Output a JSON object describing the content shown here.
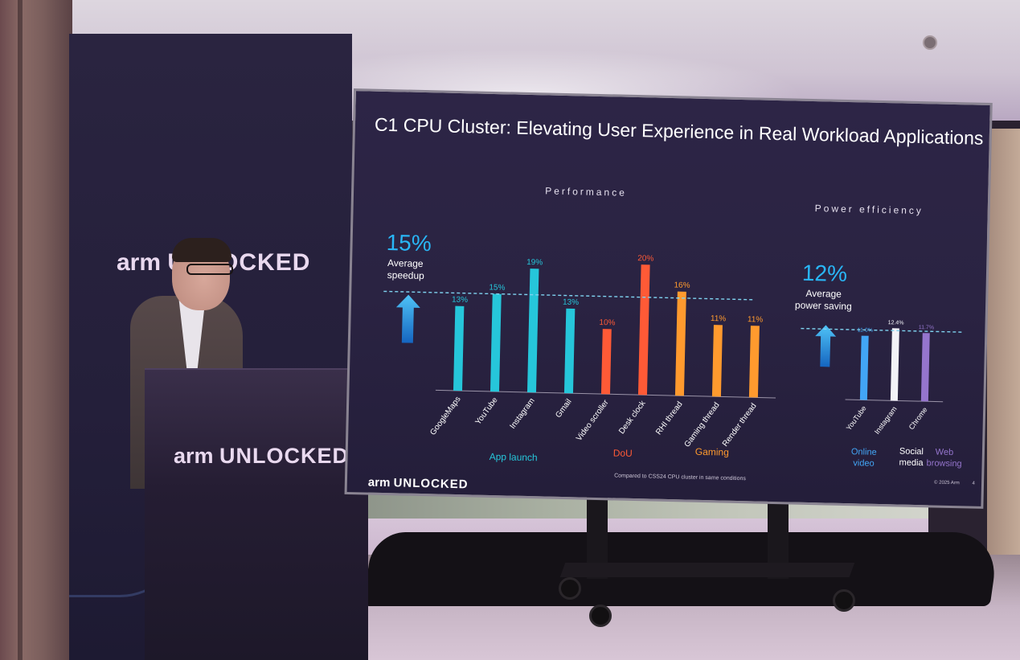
{
  "banner_logo": {
    "arm": "arm",
    "unlocked": "UNLOCKED"
  },
  "podium_logo": {
    "arm": "arm",
    "unlocked": "UNLOCKED"
  },
  "slide": {
    "title": "C1 CPU Cluster: Elevating User Experience in Real Workload Applications",
    "logo": {
      "arm": "arm",
      "unlocked": "UNLOCKED"
    },
    "footnote": "Compared to CSS24 CPU cluster in same conditions",
    "copyright": "© 2025 Arm",
    "page_number": "4"
  },
  "performance": {
    "section_title": "Performance",
    "headline_value": "15%",
    "headline_label_line1": "Average",
    "headline_label_line2": "speedup",
    "groups": [
      {
        "name": "App launch",
        "color": "#26c6da"
      },
      {
        "name": "DoU",
        "color": "#ff5a36"
      },
      {
        "name": "Gaming",
        "color": "#ff9a2e"
      }
    ]
  },
  "power": {
    "section_title": "Power efficiency",
    "headline_value": "12%",
    "headline_label_line1": "Average",
    "headline_label_line2": "power saving",
    "groups": [
      {
        "line1": "Online",
        "line2": "video",
        "color": "#42a5f5"
      },
      {
        "line1": "Social",
        "line2": "media",
        "color": "#ffffff"
      },
      {
        "line1": "Web",
        "line2": "browsing",
        "color": "#9575cd"
      }
    ]
  },
  "chart_data": [
    {
      "type": "bar",
      "categories": [
        "GoogleMaps",
        "YouTube",
        "Instagram",
        "Gmail",
        "Video scroller",
        "Desk clock",
        "RHI thread",
        "Gaming thread",
        "Render thread"
      ],
      "values": [
        13,
        15,
        19,
        13,
        10,
        20,
        16,
        11,
        11
      ],
      "value_labels": [
        "13%",
        "15%",
        "19%",
        "13%",
        "10%",
        "20%",
        "16%",
        "11%",
        "11%"
      ],
      "colors": [
        "#26c6da",
        "#26c6da",
        "#26c6da",
        "#26c6da",
        "#ff5a36",
        "#ff5a36",
        "#ff9a2e",
        "#ff9a2e",
        "#ff9a2e"
      ],
      "average": 15,
      "title": "Performance",
      "ylim": [
        0,
        20
      ]
    },
    {
      "type": "bar",
      "categories": [
        "YouTube",
        "Instagram",
        "Chrome"
      ],
      "values": [
        11.0,
        12.4,
        11.7
      ],
      "value_labels": [
        "11.0%",
        "12.4%",
        "11.7%"
      ],
      "colors": [
        "#42a5f5",
        "#f2f2f7",
        "#9575cd"
      ],
      "average": 12,
      "title": "Power efficiency",
      "ylim": [
        0,
        12.4
      ]
    }
  ]
}
